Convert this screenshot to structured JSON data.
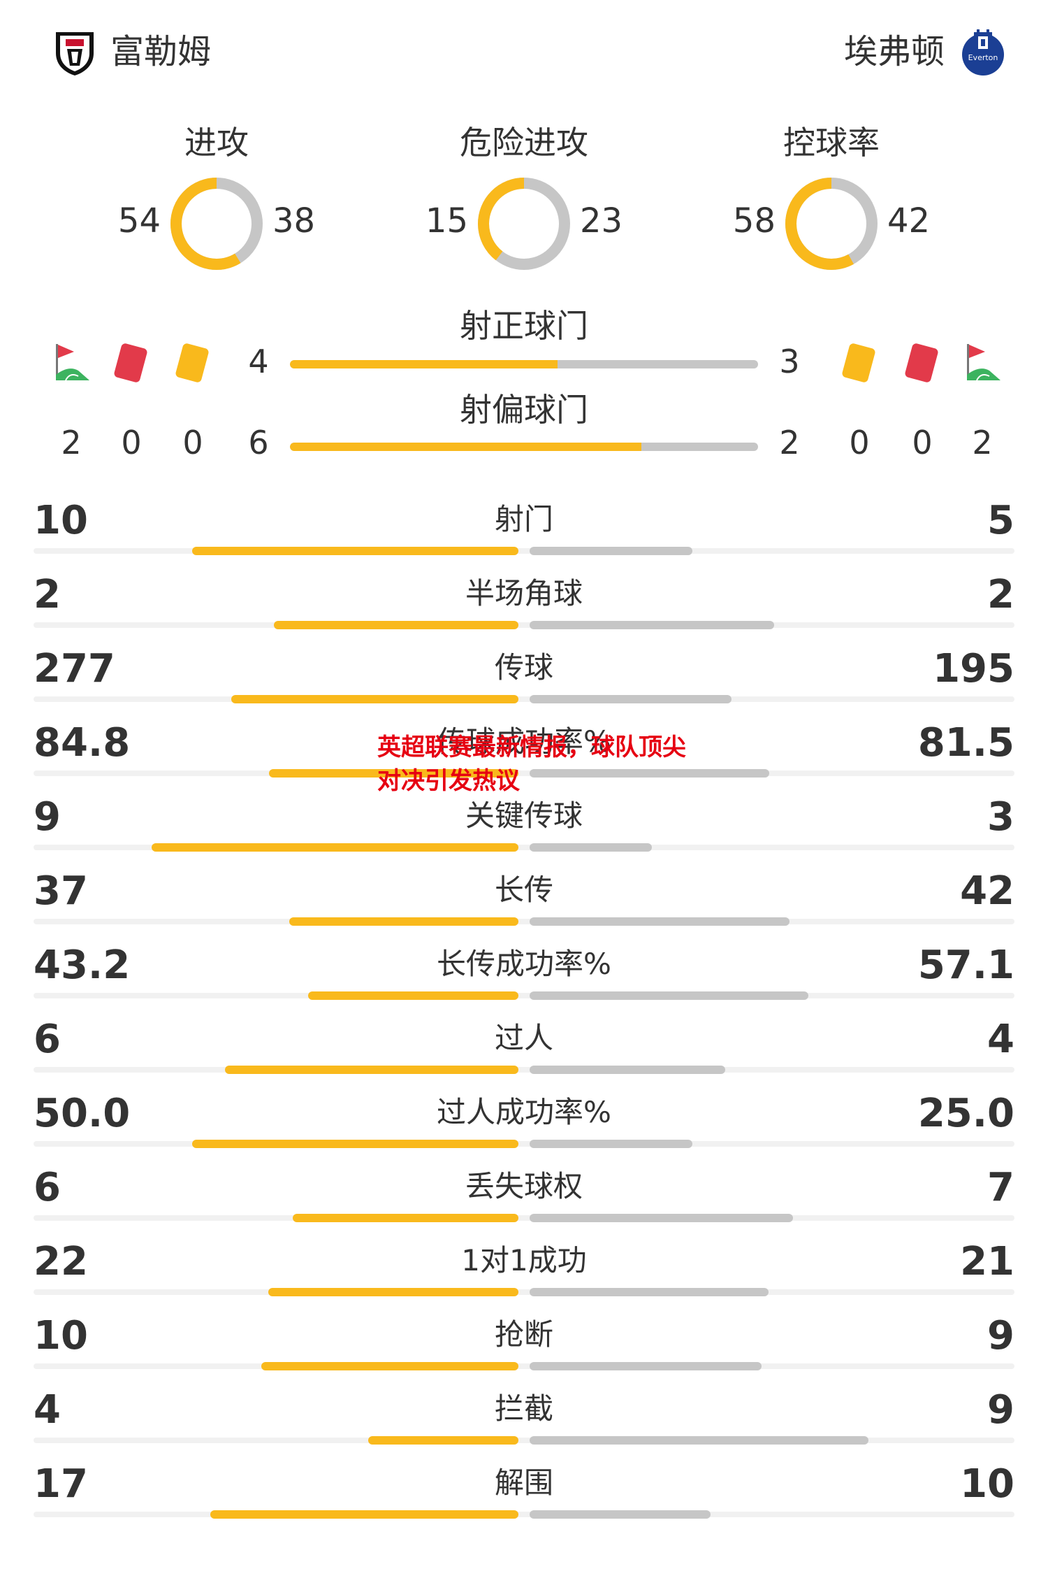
{
  "home": {
    "name": "富勒姆"
  },
  "away": {
    "name": "埃弗顿",
    "crest_text": "Everton"
  },
  "colors": {
    "home": "#f9b91c",
    "away": "#c6c6c6",
    "track": "#f1f1f1",
    "watermark": "#e60012"
  },
  "donuts": [
    {
      "title": "进攻",
      "home": "54",
      "away": "38"
    },
    {
      "title": "危险进攻",
      "home": "15",
      "away": "23"
    },
    {
      "title": "控球率",
      "home": "58",
      "away": "42"
    }
  ],
  "shots_on": {
    "title": "射正球门",
    "home": "4",
    "away": "3"
  },
  "shots_off": {
    "title": "射偏球门",
    "home": "6",
    "away": "2"
  },
  "home_counts": {
    "corners": "2",
    "red": "0",
    "yellow": "0"
  },
  "away_counts": {
    "yellow": "0",
    "red": "0",
    "corners": "2"
  },
  "icons": [
    "corner-flag-icon",
    "red-card-icon",
    "yellow-card-icon"
  ],
  "stats": [
    {
      "label": "射门",
      "home": "10",
      "away": "5"
    },
    {
      "label": "半场角球",
      "home": "2",
      "away": "2"
    },
    {
      "label": "传球",
      "home": "277",
      "away": "195"
    },
    {
      "label": "传球成功率%",
      "home": "84.8",
      "away": "81.5"
    },
    {
      "label": "关键传球",
      "home": "9",
      "away": "3"
    },
    {
      "label": "长传",
      "home": "37",
      "away": "42"
    },
    {
      "label": "长传成功率%",
      "home": "43.2",
      "away": "57.1"
    },
    {
      "label": "过人",
      "home": "6",
      "away": "4"
    },
    {
      "label": "过人成功率%",
      "home": "50.0",
      "away": "25.0"
    },
    {
      "label": "丢失球权",
      "home": "6",
      "away": "7"
    },
    {
      "label": "1对1成功",
      "home": "22",
      "away": "21"
    },
    {
      "label": "抢断",
      "home": "10",
      "away": "9"
    },
    {
      "label": "拦截",
      "home": "4",
      "away": "9"
    },
    {
      "label": "解围",
      "home": "17",
      "away": "10"
    }
  ],
  "watermark": "英超联赛最新情报，球队顶尖对决引发热议"
}
